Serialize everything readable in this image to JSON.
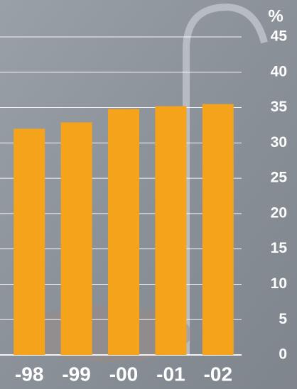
{
  "chart_data": {
    "type": "bar",
    "ylabel": "%",
    "categories": [
      "-98",
      "-99",
      "-00",
      "-01",
      "-02"
    ],
    "values": [
      32.0,
      32.9,
      34.8,
      35.2,
      35.5
    ],
    "color": "#f5a31a",
    "ylim": [
      0,
      45
    ],
    "yticks": [
      0,
      5,
      10,
      15,
      20,
      25,
      30,
      35,
      40,
      45
    ],
    "grid": true
  }
}
